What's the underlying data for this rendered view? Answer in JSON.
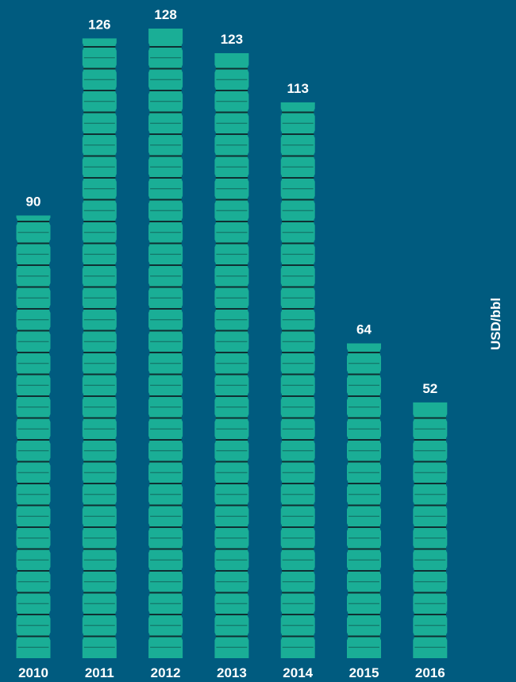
{
  "chart_data": {
    "type": "bar",
    "categories": [
      "2010",
      "2011",
      "2012",
      "2013",
      "2014",
      "2015",
      "2016"
    ],
    "values": [
      90,
      126,
      128,
      123,
      113,
      64,
      52
    ],
    "title": "",
    "xlabel": "",
    "ylabel": "USD/bbl",
    "ylim": [
      0,
      128
    ],
    "grid": false,
    "bar_color": "#1aae96",
    "segment_line_color": "#0f2f33",
    "background_color": "#005b7f",
    "label_color": "#ffffff"
  }
}
